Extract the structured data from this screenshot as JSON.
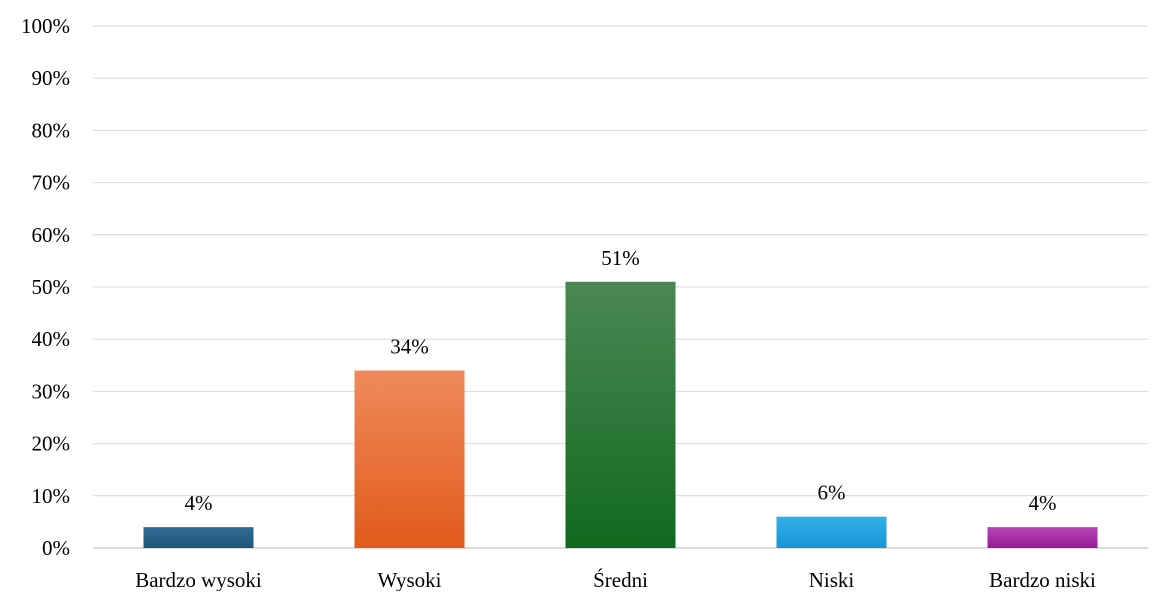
{
  "chart_data": {
    "type": "bar",
    "title": "",
    "xlabel": "",
    "ylabel": "",
    "categories": [
      "Bardzo wysoki",
      "Wysoki",
      "Średni",
      "Niski",
      "Bardzo niski"
    ],
    "values": [
      4,
      34,
      51,
      6,
      4
    ],
    "value_labels": [
      "4%",
      "34%",
      "51%",
      "6%",
      "4%"
    ],
    "ylim": [
      0,
      100
    ],
    "y_ticks": [
      0,
      10,
      20,
      30,
      40,
      50,
      60,
      70,
      80,
      90,
      100
    ],
    "y_tick_labels": [
      "0%",
      "10%",
      "20%",
      "30%",
      "40%",
      "50%",
      "60%",
      "70%",
      "80%",
      "90%",
      "100%"
    ],
    "grid": true,
    "legend": "none",
    "bar_colors": [
      [
        "#2f6e96",
        "#1d5577"
      ],
      [
        "#ef8a5c",
        "#e15a1a"
      ],
      [
        "#4b8754",
        "#11691e"
      ],
      [
        "#2fb0ea",
        "#1696d4"
      ],
      [
        "#b745b8",
        "#961a98"
      ]
    ],
    "grid_color": "#d9d9d9",
    "axis_color": "#d0d0d0"
  }
}
